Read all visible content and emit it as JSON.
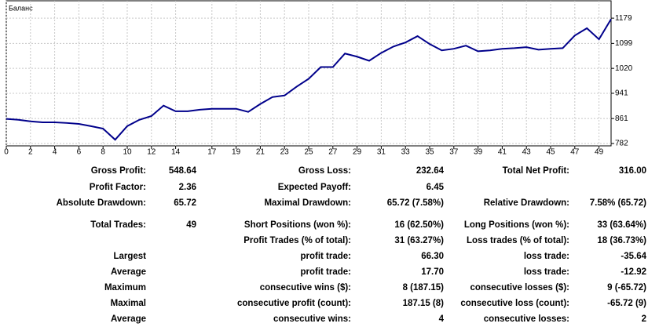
{
  "chart_data": {
    "type": "line",
    "title": "Баланс",
    "x": [
      0,
      1,
      2,
      3,
      4,
      5,
      6,
      7,
      8,
      9,
      10,
      11,
      12,
      13,
      14,
      15,
      16,
      17,
      18,
      19,
      20,
      21,
      22,
      23,
      24,
      25,
      26,
      27,
      28,
      29,
      30,
      31,
      32,
      33,
      34,
      35,
      36,
      37,
      38,
      39,
      40,
      41,
      42,
      43,
      44,
      45,
      46,
      47,
      48,
      49,
      50
    ],
    "series": [
      {
        "name": "Баланс",
        "color": "#00008b",
        "values": [
          860,
          857,
          852,
          849,
          849,
          847,
          844,
          837,
          829,
          794,
          837,
          857,
          869,
          902,
          884,
          884,
          889,
          892,
          892,
          892,
          882,
          907,
          929,
          934,
          962,
          987,
          1024,
          1024,
          1067,
          1057,
          1044,
          1069,
          1089,
          1102,
          1122,
          1097,
          1077,
          1082,
          1092,
          1074,
          1077,
          1082,
          1084,
          1087,
          1079,
          1082,
          1084,
          1124,
          1147,
          1112,
          1176
        ]
      }
    ],
    "xlim": [
      0,
      50
    ],
    "ylim": [
      774.5,
      1234
    ],
    "xticks": [
      0,
      2,
      4,
      6,
      8,
      10,
      12,
      14,
      17,
      19,
      21,
      23,
      25,
      27,
      29,
      31,
      33,
      35,
      37,
      39,
      41,
      43,
      45,
      47,
      49
    ],
    "yticks": [
      782,
      861,
      941,
      1020,
      1099,
      1179
    ],
    "grid": true
  },
  "stats": {
    "rows": [
      [
        "Gross Profit:",
        "548.64",
        "Gross Loss:",
        "232.64",
        "Total Net Profit:",
        "316.00"
      ],
      [
        "Profit Factor:",
        "2.36",
        "Expected Payoff:",
        "6.45",
        null,
        null
      ],
      [
        "Absolute Drawdown:",
        "65.72",
        "Maximal Drawdown:",
        "65.72 (7.58%)",
        "Relative Drawdown:",
        "7.58% (65.72)"
      ],
      [
        "Total Trades:",
        "49",
        "Short Positions (won %):",
        "16 (62.50%)",
        "Long Positions (won %):",
        "33 (63.64%)"
      ],
      [
        null,
        null,
        "Profit Trades (% of total):",
        "31 (63.27%)",
        "Loss trades (% of total):",
        "18 (36.73%)"
      ],
      [
        "Largest",
        null,
        "profit trade:",
        "66.30",
        "loss trade:",
        "-35.64"
      ],
      [
        "Average",
        null,
        "profit trade:",
        "17.70",
        "loss trade:",
        "-12.92"
      ],
      [
        "Maximum",
        null,
        "consecutive wins ($):",
        "8 (187.15)",
        "consecutive losses ($):",
        "9 (-65.72)"
      ],
      [
        "Maximal",
        null,
        "consecutive profit (count):",
        "187.15 (8)",
        "consecutive loss (count):",
        "-65.72 (9)"
      ],
      [
        "Average",
        null,
        "consecutive wins:",
        "4",
        "consecutive losses:",
        "2"
      ]
    ]
  }
}
